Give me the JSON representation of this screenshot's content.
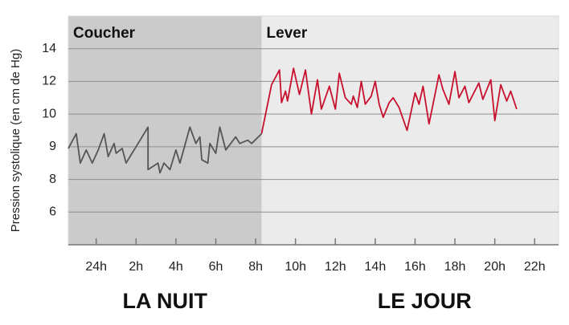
{
  "chart_data": {
    "type": "line",
    "ylabel": "Pression systolique (en cm de Hg)",
    "xlim": [
      22.6,
      47.2
    ],
    "xticks": [
      {
        "value": 24,
        "label": "24h"
      },
      {
        "value": 26,
        "label": "2h"
      },
      {
        "value": 28,
        "label": "4h"
      },
      {
        "value": 30,
        "label": "6h"
      },
      {
        "value": 32,
        "label": "8h"
      },
      {
        "value": 34,
        "label": "10h"
      },
      {
        "value": 36,
        "label": "12h"
      },
      {
        "value": 38,
        "label": "14h"
      },
      {
        "value": 40,
        "label": "16h"
      },
      {
        "value": 42,
        "label": "18h"
      },
      {
        "value": 44,
        "label": "20h"
      },
      {
        "value": 46,
        "label": "22h"
      }
    ],
    "ylim": [
      4,
      16
    ],
    "yticks": [
      6,
      8,
      9,
      10,
      12,
      14
    ],
    "grid": true,
    "regions": [
      {
        "label": "Coucher",
        "period": "LA NUIT",
        "x": [
          22.6,
          32.3
        ],
        "color": "#cbcbcb"
      },
      {
        "label": "Lever",
        "period": "LE JOUR",
        "x": [
          32.3,
          47.2
        ],
        "color": "#ebebeb"
      }
    ],
    "series": [
      {
        "color": "#555555",
        "x": [
          22.6,
          23.0,
          23.2,
          23.5,
          23.8,
          24.1,
          24.4,
          24.6,
          24.9,
          25.0,
          25.3,
          25.5,
          25.8,
          26.1,
          26.6,
          26.6,
          27.1,
          27.2,
          27.4,
          27.7,
          28.0,
          28.2,
          28.7,
          29.0,
          29.2,
          29.3,
          29.6,
          29.7,
          30.0,
          30.2,
          30.5,
          31.0,
          31.2,
          31.6,
          31.8,
          32.3
        ],
        "values": [
          8.95,
          9.4,
          8.5,
          8.9,
          8.5,
          8.9,
          9.4,
          8.7,
          9.1,
          8.8,
          8.95,
          8.5,
          8.8,
          9.1,
          9.6,
          8.3,
          8.5,
          8.2,
          8.5,
          8.3,
          8.9,
          8.5,
          9.6,
          9.1,
          9.3,
          8.6,
          8.5,
          9.1,
          8.8,
          9.6,
          8.9,
          9.3,
          9.1,
          9.2,
          9.1,
          9.4
        ]
      },
      {
        "color": "#c8102e",
        "x": [
          32.3,
          32.8,
          33.2,
          33.3,
          33.5,
          33.6,
          33.9,
          34.2,
          34.5,
          34.8,
          35.1,
          35.3,
          35.7,
          36.0,
          36.2,
          36.5,
          36.8,
          36.9,
          37.1,
          37.3,
          37.5,
          37.8,
          38.0,
          38.2,
          38.4,
          38.7,
          38.9,
          39.2,
          39.6,
          40.0,
          40.2,
          40.4,
          40.7,
          41.2,
          41.4,
          41.7,
          42.0,
          42.2,
          42.5,
          42.7,
          43.2,
          43.4,
          43.8,
          44.0,
          44.3,
          44.6,
          44.8,
          45.1
        ],
        "values": [
          9.4,
          11.8,
          12.7,
          10.7,
          11.4,
          10.8,
          12.8,
          11.2,
          12.7,
          10.0,
          12.1,
          10.3,
          11.7,
          10.3,
          12.5,
          11.0,
          10.6,
          11.1,
          10.4,
          12.0,
          10.6,
          11.1,
          12.0,
          10.6,
          9.9,
          10.7,
          11.0,
          10.4,
          9.5,
          11.3,
          10.6,
          11.7,
          9.7,
          12.4,
          11.5,
          10.6,
          12.6,
          11.0,
          11.7,
          10.7,
          11.9,
          10.9,
          12.1,
          9.8,
          11.8,
          10.8,
          11.4,
          10.3
        ]
      }
    ]
  }
}
